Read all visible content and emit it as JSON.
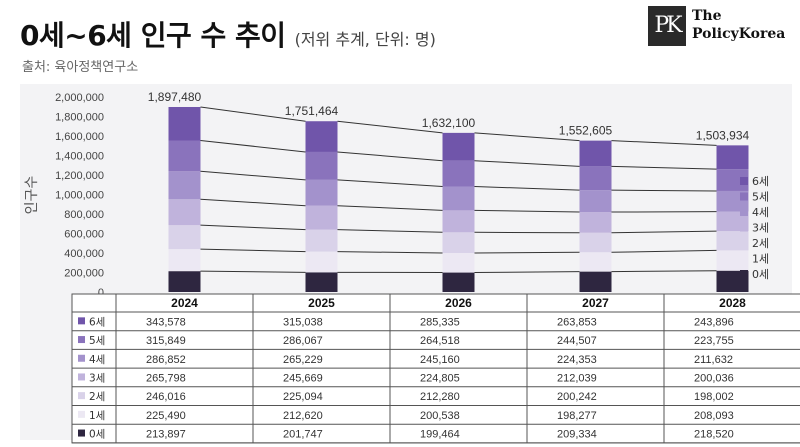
{
  "header": {
    "title": "0세~6세 인구 수 추이",
    "subtitle": "(저위 추계, 단위: 명)",
    "source": "출처: 육아정책연구소"
  },
  "logo": {
    "mark": "PK",
    "line1": "The",
    "line2": "PolicyKorea"
  },
  "chart_data": {
    "type": "bar",
    "stacked": true,
    "ylabel": "인구수",
    "ylim": [
      0,
      2000000
    ],
    "yticks": [
      "2,000,000",
      "1,800,000",
      "1,600,000",
      "1,400,000",
      "1,200,000",
      "1,000,000",
      "800,000",
      "600,000",
      "400,000",
      "200,000",
      "0"
    ],
    "categories": [
      "2024",
      "2025",
      "2026",
      "2027",
      "2028"
    ],
    "totals": [
      1897480,
      1751464,
      1632100,
      1552605,
      1503934
    ],
    "total_labels": [
      "1,897,480",
      "1,751,464",
      "1,632,100",
      "1,552,605",
      "1,503,934"
    ],
    "series": [
      {
        "name": "0세",
        "color": "#2e2640",
        "values": [
          213897,
          201747,
          199464,
          209334,
          218520
        ],
        "labels": [
          "213,897",
          "201,747",
          "199,464",
          "209,334",
          "218,520"
        ]
      },
      {
        "name": "1세",
        "color": "#ece8f3",
        "values": [
          225490,
          212620,
          200538,
          198277,
          208093
        ],
        "labels": [
          "225,490",
          "212,620",
          "200,538",
          "198,277",
          "208,093"
        ]
      },
      {
        "name": "2세",
        "color": "#d9d2e9",
        "values": [
          246016,
          225094,
          212280,
          200242,
          198002
        ],
        "labels": [
          "246,016",
          "225,094",
          "212,280",
          "200,242",
          "198,002"
        ]
      },
      {
        "name": "3세",
        "color": "#c0b3dc",
        "values": [
          265798,
          245669,
          224805,
          212039,
          200036
        ],
        "labels": [
          "265,798",
          "245,669",
          "224,805",
          "212,039",
          "200,036"
        ]
      },
      {
        "name": "4세",
        "color": "#a392cc",
        "values": [
          286852,
          265229,
          245160,
          224353,
          211632
        ],
        "labels": [
          "286,852",
          "265,229",
          "245,160",
          "224,353",
          "211,632"
        ]
      },
      {
        "name": "5세",
        "color": "#8a73bc",
        "values": [
          315849,
          286067,
          264518,
          244507,
          223755
        ],
        "labels": [
          "315,849",
          "286,067",
          "264,518",
          "244,507",
          "223,755"
        ]
      },
      {
        "name": "6세",
        "color": "#7055aa",
        "values": [
          343578,
          315038,
          285335,
          263853,
          243896
        ],
        "labels": [
          "343,578",
          "315,038",
          "285,335",
          "263,853",
          "243,896"
        ]
      }
    ],
    "legend_position": "right",
    "table_below": true
  }
}
